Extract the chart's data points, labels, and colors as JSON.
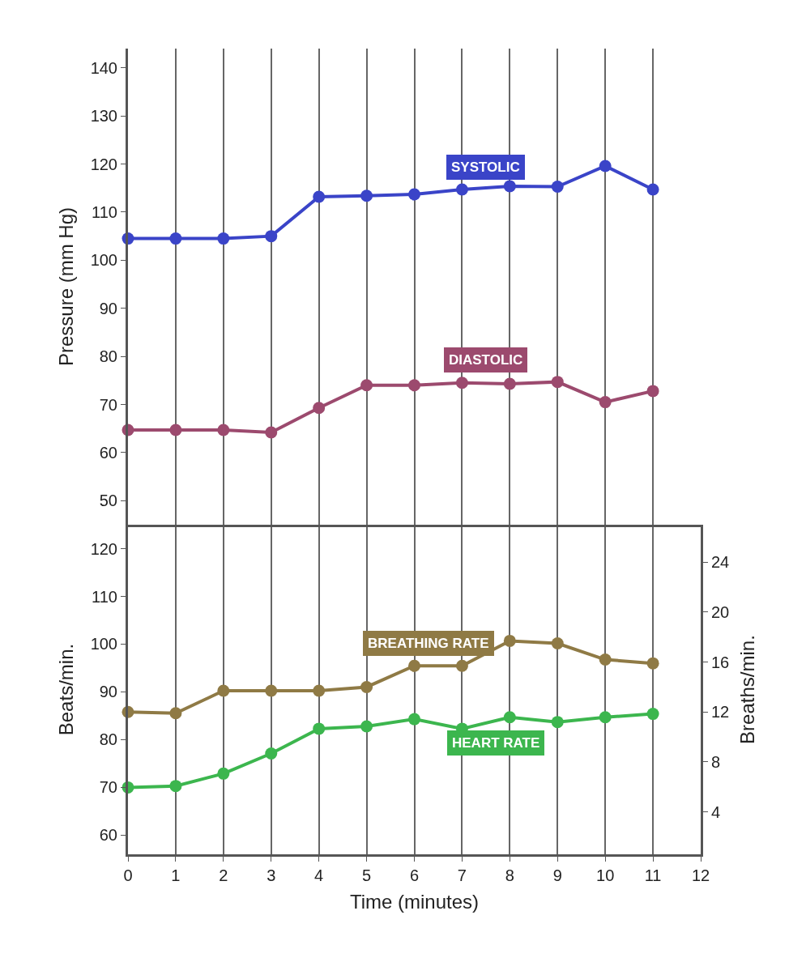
{
  "chart_data": [
    {
      "type": "line",
      "ylabel": "Pressure (mm Hg)",
      "x": [
        0,
        1,
        2,
        3,
        4,
        5,
        6,
        7,
        8,
        9,
        10,
        11
      ],
      "xlim": [
        0,
        12
      ],
      "xticks": [
        0,
        1,
        2,
        3,
        4,
        5,
        6,
        7,
        8,
        9,
        10,
        11,
        12
      ],
      "ylim": [
        45,
        144
      ],
      "yticks": [
        50,
        60,
        70,
        80,
        90,
        100,
        110,
        120,
        130,
        140
      ],
      "tick_labels": "y",
      "grid": "x",
      "legend": false,
      "marker": "circle",
      "line_style": "solid",
      "series": [
        {
          "name": "SYSTOLIC",
          "color": "#3a44c8",
          "values": [
            104.5,
            104.5,
            104.5,
            105,
            113.2,
            113.4,
            113.7,
            114.7,
            115.4,
            115.3,
            119.6,
            114.7
          ]
        },
        {
          "name": "DIASTOLIC",
          "color": "#9c4a6e",
          "values": [
            64.7,
            64.7,
            64.7,
            64.2,
            69.3,
            74,
            74,
            74.5,
            74.3,
            74.7,
            70.5,
            72.8
          ]
        }
      ]
    },
    {
      "type": "line",
      "xlabel": "Time (minutes)",
      "ylabel": "Beats/min.",
      "y2label": "Breaths/min.",
      "x": [
        0,
        1,
        2,
        3,
        4,
        5,
        6,
        7,
        8,
        9,
        10,
        11
      ],
      "xlim": [
        0,
        12
      ],
      "xticks": [
        0,
        1,
        2,
        3,
        4,
        5,
        6,
        7,
        8,
        9,
        10,
        11,
        12
      ],
      "ylim": [
        56,
        125
      ],
      "yticks": [
        60,
        70,
        80,
        90,
        100,
        110,
        120
      ],
      "y2lim": [
        0.6,
        27
      ],
      "y2ticks": [
        4,
        8,
        12,
        16,
        20,
        24
      ],
      "grid": "x",
      "legend": false,
      "marker": "circle",
      "line_style": "solid",
      "series": [
        {
          "name": "BREATHING RATE",
          "color": "#8f7a45",
          "axis": "y2",
          "values": [
            12,
            11.9,
            13.7,
            13.7,
            13.7,
            14,
            15.7,
            15.7,
            17.7,
            17.5,
            16.2,
            15.9
          ]
        },
        {
          "name": "HEART RATE",
          "color": "#3cb64e",
          "values": [
            70,
            70.3,
            72.9,
            77.1,
            82.3,
            82.8,
            84.3,
            82.3,
            84.7,
            83.7,
            84.7,
            85.4
          ]
        }
      ]
    }
  ]
}
